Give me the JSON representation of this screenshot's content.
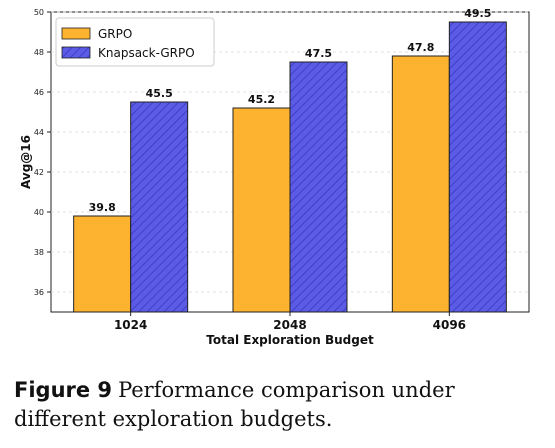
{
  "chart_data": {
    "type": "bar",
    "categories": [
      "1024",
      "2048",
      "4096"
    ],
    "series": [
      {
        "name": "GRPO",
        "values": [
          39.8,
          45.2,
          47.8
        ],
        "labels": [
          "39.8",
          "45.2",
          "47.8"
        ],
        "color": "#FDB32F"
      },
      {
        "name": "Knapsack-GRPO",
        "values": [
          45.5,
          47.5,
          49.5
        ],
        "labels": [
          "45.5",
          "47.5",
          "49.5"
        ],
        "color": "#5B5BE6"
      }
    ],
    "xlabel": "Total Exploration Budget",
    "ylabel": "Avg@16",
    "ylim": [
      35,
      50
    ],
    "yticks": [
      36,
      38,
      40,
      42,
      44,
      46,
      48,
      50
    ],
    "grid": true,
    "legend": "top-left"
  },
  "caption": {
    "label": "Figure 9",
    "text": "Performance comparison under different exploration budgets."
  }
}
